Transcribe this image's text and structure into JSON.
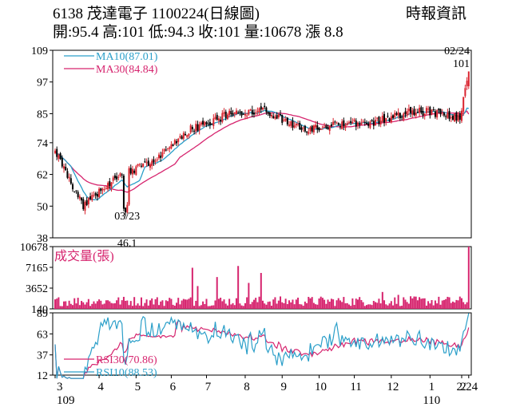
{
  "header": {
    "title": "6138 茂達電子 1100224(日線圖)",
    "stats": "開:95.4 高:101 低:94.3 收:101 量:10678 漲 8.8",
    "source": "時報資訊"
  },
  "colors": {
    "candle_up": "#d9232e",
    "candle_down": "#000000",
    "ma10": "#2b9fc9",
    "ma30": "#d6246e",
    "volume": "#d6246e",
    "rsi30": "#d6246e",
    "rsi10": "#2b9fc9"
  },
  "chart_data": [
    {
      "type": "candlestick",
      "panel": "price",
      "y_ticks": [
        "109",
        "97",
        "85",
        "74",
        "62",
        "50",
        "38"
      ],
      "ylim": [
        38,
        109
      ],
      "legend": [
        {
          "name": "MA10(87.01)",
          "color": "#2b9fc9"
        },
        {
          "name": "MA30(84.84)",
          "color": "#d6246e"
        }
      ],
      "annotations": [
        {
          "date": "03/23",
          "value": "46.1",
          "note": "low"
        },
        {
          "date": "02/24",
          "value": "101",
          "note": "last"
        }
      ],
      "anchors": {
        "start_price": 71,
        "low_bar": 40,
        "low_price": 46.1,
        "end_price": 101
      },
      "price_path_by_month": [
        {
          "month": "3",
          "close": 71
        },
        {
          "month": "3",
          "close": 50
        },
        {
          "month": "4",
          "close": 62
        },
        {
          "month": "5",
          "close": 67
        },
        {
          "month": "6",
          "close": 79
        },
        {
          "month": "7",
          "close": 85
        },
        {
          "month": "8",
          "close": 86
        },
        {
          "month": "9",
          "close": 79
        },
        {
          "month": "10",
          "close": 81
        },
        {
          "month": "11",
          "close": 82
        },
        {
          "month": "12",
          "close": 86
        },
        {
          "month": "1",
          "close": 85
        },
        {
          "month": "2",
          "close": 83
        },
        {
          "month": "2/24",
          "close": 101
        }
      ],
      "ma10_last": 87.01,
      "ma30_last": 84.84
    },
    {
      "type": "bar",
      "panel": "volume",
      "title": "成交量(張)",
      "y_ticks": [
        "10678",
        "7165",
        "3652",
        "140"
      ],
      "ylim": [
        140,
        10678
      ],
      "last_value": 10678,
      "typical_range": [
        600,
        3000
      ],
      "spikes_by_month": [
        {
          "month": "5",
          "value": 7100
        },
        {
          "month": "6",
          "value": 7400
        },
        {
          "month": "12",
          "value": 3000
        },
        {
          "month": "2/24",
          "value": 10678
        }
      ]
    },
    {
      "type": "line",
      "panel": "rsi",
      "y_ticks": [
        "89",
        "63",
        "37",
        "12"
      ],
      "ylim": [
        12,
        89
      ],
      "series": [
        {
          "name": "RSI30(70.86)",
          "last": 70.86,
          "color": "#d6246e"
        },
        {
          "name": "RSI10(88.53)",
          "last": 88.53,
          "color": "#2b9fc9"
        }
      ]
    }
  ],
  "x_axis": {
    "month_labels": [
      "3",
      "4",
      "5",
      "6",
      "7",
      "8",
      "9",
      "10",
      "11",
      "12",
      "1",
      "2",
      "2/24"
    ],
    "year_labels": [
      "109",
      "110"
    ]
  }
}
